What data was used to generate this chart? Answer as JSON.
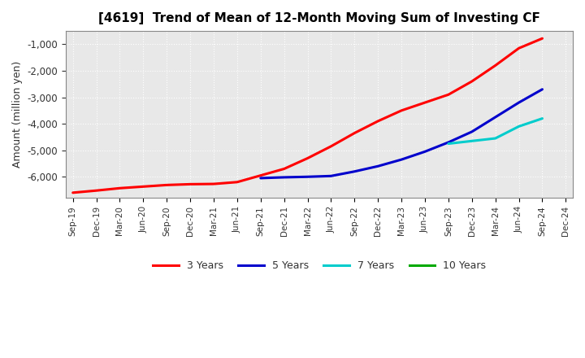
{
  "title": "[4619]  Trend of Mean of 12-Month Moving Sum of Investing CF",
  "ylabel": "Amount (million yen)",
  "background_color": "#ffffff",
  "plot_bg_color": "#e8e8e8",
  "grid_color": "#ffffff",
  "xlim_start": "Sep-19",
  "xlim_end": "Dec-24",
  "ylim": [
    -6800,
    -500
  ],
  "yticks": [
    -6000,
    -5000,
    -4000,
    -3000,
    -2000,
    -1000
  ],
  "x_labels": [
    "Sep-19",
    "Dec-19",
    "Mar-20",
    "Jun-20",
    "Sep-20",
    "Dec-20",
    "Mar-21",
    "Jun-21",
    "Sep-21",
    "Dec-21",
    "Mar-22",
    "Jun-22",
    "Sep-22",
    "Dec-22",
    "Mar-23",
    "Jun-23",
    "Sep-23",
    "Dec-23",
    "Mar-24",
    "Jun-24",
    "Sep-24",
    "Dec-24"
  ],
  "series": {
    "3 Years": {
      "color": "#ff0000",
      "x_indices": [
        0,
        1,
        2,
        3,
        4,
        5,
        6,
        7,
        8,
        9,
        10,
        11,
        12,
        13,
        14,
        15,
        16,
        17,
        18,
        19,
        20
      ],
      "y": [
        -6600,
        -6520,
        -6430,
        -6370,
        -6310,
        -6280,
        -6270,
        -6200,
        -5950,
        -5700,
        -5300,
        -4850,
        -4350,
        -3900,
        -3500,
        -3200,
        -2900,
        -2400,
        -1800,
        -1150,
        -780
      ]
    },
    "5 Years": {
      "color": "#0000cc",
      "x_indices": [
        8,
        9,
        10,
        11,
        12,
        13,
        14,
        15,
        16,
        17,
        18,
        19,
        20
      ],
      "y": [
        -6050,
        -6020,
        -6000,
        -5970,
        -5800,
        -5600,
        -5350,
        -5050,
        -4700,
        -4300,
        -3750,
        -3200,
        -2700
      ]
    },
    "7 Years": {
      "color": "#00cccc",
      "x_indices": [
        16,
        17,
        18,
        19,
        20
      ],
      "y": [
        -4750,
        -4650,
        -4550,
        -4100,
        -3800
      ]
    },
    "10 Years": {
      "color": "#00aa00",
      "x_indices": [],
      "y": []
    }
  },
  "legend_labels": [
    "3 Years",
    "5 Years",
    "7 Years",
    "10 Years"
  ],
  "legend_colors": [
    "#ff0000",
    "#0000cc",
    "#00cccc",
    "#00aa00"
  ]
}
